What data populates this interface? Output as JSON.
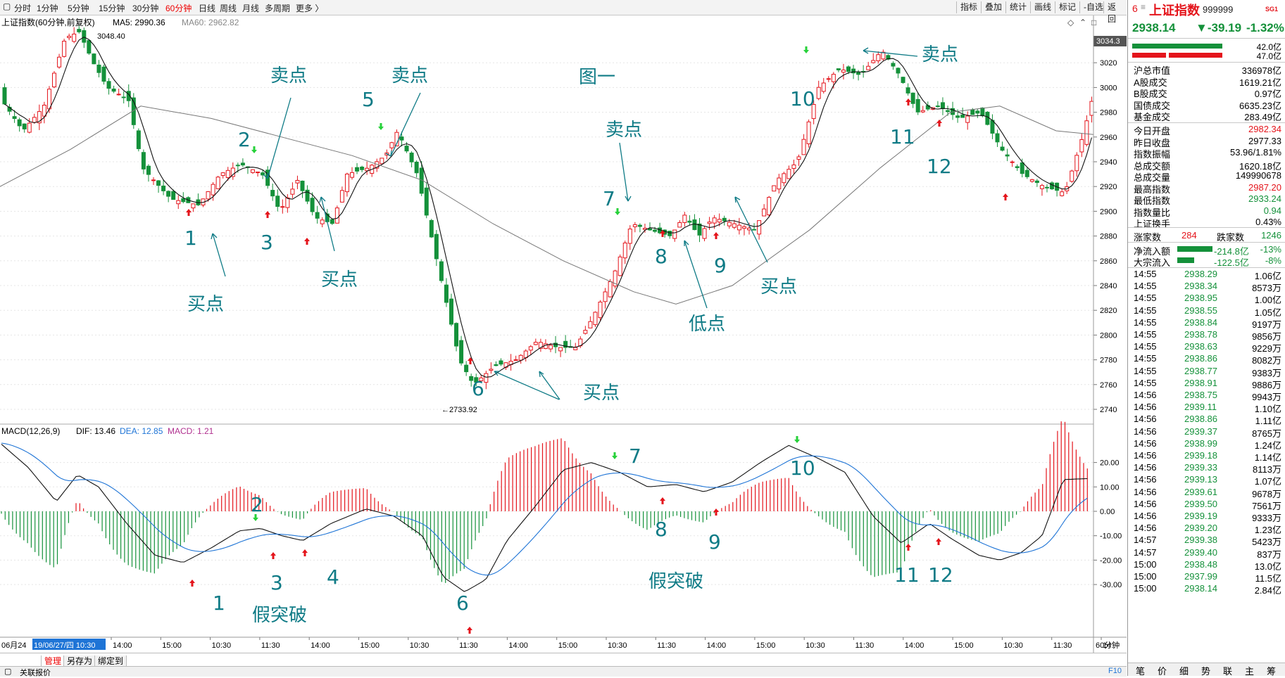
{
  "toolbar": {
    "periods": [
      "分时",
      "1分钟",
      "5分钟",
      "15分钟",
      "30分钟",
      "60分钟",
      "日线",
      "周线",
      "月线",
      "多周期",
      "更多 〉"
    ],
    "active_period": "60分钟",
    "right_buttons": [
      "指标",
      "叠加",
      "统计",
      "画线",
      "标记",
      "-自选",
      "返回"
    ]
  },
  "chart": {
    "title": "上证指数(60分钟,前复权)",
    "ma5_label": "MA5: 2990.36",
    "ma60_label": "MA60: 2962.82",
    "high_mark": "3048.40",
    "low_mark": "←2733.92",
    "current_price_tag": "3034.3",
    "y_ticks": [
      "3020",
      "3000",
      "2980",
      "2960",
      "2940",
      "2920",
      "2900",
      "2880",
      "2860",
      "2840",
      "2820",
      "2800",
      "2780",
      "2760",
      "2740"
    ],
    "figure_label": "图一"
  },
  "annotations": {
    "sell_point": "卖点",
    "buy_point": "买点",
    "low_point": "低点",
    "false_break": "假突破",
    "n1": "1",
    "n2": "2",
    "n3": "3",
    "n4": "4",
    "n5": "5",
    "n6": "6",
    "n7": "7",
    "n8": "8",
    "n9": "9",
    "n10": "10",
    "n11": "11",
    "n12": "12"
  },
  "macd": {
    "title": "MACD(12,26,9)",
    "dif": "DIF: 13.46",
    "dea": "DEA: 12.85",
    "macd": "MACD: 1.21",
    "y_ticks": [
      "20.00",
      "10.00",
      "0.00",
      "-10.00",
      "-20.00",
      "-30.00"
    ]
  },
  "time_axis": {
    "date_start": "06月24",
    "cursor_date": "19/06/27/四 10:30",
    "labels": [
      "14:00",
      "15:00",
      "10:30",
      "11:30",
      "14:00",
      "15:00",
      "10:30",
      "11:30",
      "14:00",
      "15:00",
      "10:30",
      "11:30",
      "14:00",
      "15:00",
      "10:30",
      "11:30",
      "14:00",
      "15:00",
      "10:30",
      "11:30",
      "14:"
    ],
    "period_label": "60分钟"
  },
  "bottom_tabs": [
    "管理",
    "另存为",
    "绑定到"
  ],
  "status": {
    "left": "关联报价",
    "right": "F10"
  },
  "quote": {
    "prefix": "6",
    "name": "上证指数",
    "code": "999999",
    "badge": "SG1",
    "price": "2938.14",
    "change": "▼-39.19",
    "pct": "-1.32%",
    "vol_top": "42.0亿",
    "vol_bottom": "47.0亿",
    "rows1": [
      {
        "label": "沪总市值",
        "value": "336978亿",
        "color": "black"
      },
      {
        "label": "A股成交",
        "value": "1619.21亿",
        "color": "black"
      },
      {
        "label": "B股成交",
        "value": "0.97亿",
        "color": "black"
      },
      {
        "label": "国债成交",
        "value": "6635.23亿",
        "color": "black"
      },
      {
        "label": "基金成交",
        "value": "283.49亿",
        "color": "black"
      }
    ],
    "rows2": [
      {
        "label": "今日开盘",
        "value": "2982.34",
        "color": "red"
      },
      {
        "label": "昨日收盘",
        "value": "2977.33",
        "color": "black"
      },
      {
        "label": "指数振幅",
        "value": "53.96/1.81%",
        "color": "black"
      },
      {
        "label": "总成交额",
        "value": "1620.18亿",
        "color": "black"
      },
      {
        "label": "总成交量",
        "value": "149990678",
        "color": "black"
      },
      {
        "label": "最高指数",
        "value": "2987.20",
        "color": "red"
      },
      {
        "label": "最低指数",
        "value": "2933.24",
        "color": "green"
      },
      {
        "label": "指数量比",
        "value": "0.94",
        "color": "green"
      },
      {
        "label": "上证换手",
        "value": "0.43%",
        "color": "black"
      }
    ],
    "up_label": "涨家数",
    "up_count": "284",
    "down_label": "跌家数",
    "down_count": "1246",
    "net_inflow_label": "净流入额",
    "net_inflow": "-214.8亿",
    "net_inflow_pct": "-13%",
    "block_inflow_label": "大宗流入",
    "block_inflow": "-122.5亿",
    "block_inflow_pct": "-8%",
    "ticks": [
      [
        "14:55",
        "2938.29",
        "1.06亿"
      ],
      [
        "14:55",
        "2938.34",
        "8573万"
      ],
      [
        "14:55",
        "2938.95",
        "1.00亿"
      ],
      [
        "14:55",
        "2938.55",
        "1.05亿"
      ],
      [
        "14:55",
        "2938.84",
        "9197万"
      ],
      [
        "14:55",
        "2938.78",
        "9856万"
      ],
      [
        "14:55",
        "2938.63",
        "9229万"
      ],
      [
        "14:55",
        "2938.86",
        "8082万"
      ],
      [
        "14:55",
        "2938.77",
        "9383万"
      ],
      [
        "14:55",
        "2938.91",
        "9886万"
      ],
      [
        "14:56",
        "2938.75",
        "9943万"
      ],
      [
        "14:56",
        "2939.11",
        "1.10亿"
      ],
      [
        "14:56",
        "2938.86",
        "1.11亿"
      ],
      [
        "14:56",
        "2939.37",
        "8765万"
      ],
      [
        "14:56",
        "2938.99",
        "1.24亿"
      ],
      [
        "14:56",
        "2939.18",
        "1.14亿"
      ],
      [
        "14:56",
        "2939.33",
        "8113万"
      ],
      [
        "14:56",
        "2939.13",
        "1.07亿"
      ],
      [
        "14:56",
        "2939.61",
        "9678万"
      ],
      [
        "14:56",
        "2939.50",
        "7561万"
      ],
      [
        "14:56",
        "2939.19",
        "9333万"
      ],
      [
        "14:56",
        "2939.20",
        "1.23亿"
      ],
      [
        "14:57",
        "2939.38",
        "5423万"
      ],
      [
        "14:57",
        "2939.40",
        "837万"
      ],
      [
        "15:00",
        "2938.48",
        "13.0亿"
      ],
      [
        "15:00",
        "2937.99",
        "11.5亿"
      ],
      [
        "15:00",
        "2938.14",
        "2.84亿"
      ]
    ],
    "tabs": [
      "笔",
      "价",
      "细",
      "势",
      "联",
      "主",
      "筹"
    ]
  },
  "chart_data": {
    "type": "candlestick",
    "price_axis": [
      2733.92,
      3048.4
    ],
    "key_points": [
      {
        "label": "1",
        "close": 2905
      },
      {
        "label": "2",
        "close": 2938
      },
      {
        "label": "3",
        "close": 2895
      },
      {
        "label": "5",
        "close": 2965
      },
      {
        "label": "6",
        "close": 2775
      },
      {
        "label": "7",
        "close": 2897
      },
      {
        "label": "8",
        "close": 2890
      },
      {
        "label": "9",
        "close": 2885
      },
      {
        "label": "10",
        "close": 3015
      },
      {
        "label": "11",
        "close": 2980
      },
      {
        "label": "12",
        "close": 2975
      }
    ],
    "low": 2733.92,
    "high": 3048.4
  }
}
